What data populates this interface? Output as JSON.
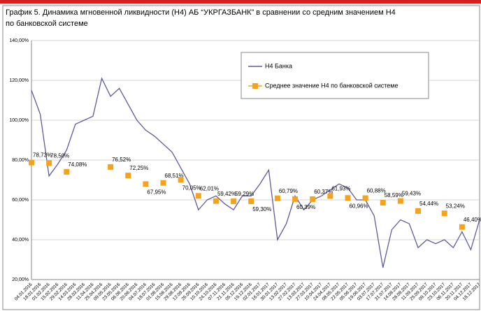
{
  "chart_data": {
    "type": "line",
    "title": "График 5. Динамика мгновенной ликвидности (Н4) АБ “УКРГАЗБАНК” в сравнении со средним значением Н4 по банковской системе",
    "categories": [
      "04.01.2016",
      "18.01.2016",
      "01.02.2016",
      "15.02.2016",
      "29.02.2016",
      "14.03.2016",
      "28.03.2016",
      "11.04.2016",
      "25.04.2016",
      "09.05.2016",
      "23.05.2016",
      "06.06.2016",
      "20.06.2016",
      "04.07.2016",
      "18.07.2016",
      "01.08.2016",
      "15.08.2016",
      "29.08.2016",
      "12.09.2016",
      "26.09.2016",
      "10.10.2016",
      "24.10.2016",
      "07.11.2016",
      "21.11.2016",
      "05.12.2016",
      "19.12.2016",
      "02.01.2017",
      "16.01.2017",
      "30.01.2017",
      "13.02.2017",
      "27.02.2017",
      "13.03.2017",
      "27.03.2017",
      "10.04.2017",
      "24.04.2017",
      "08.05.2017",
      "22.05.2017",
      "05.06.2017",
      "19.06.2017",
      "03.07.2017",
      "17.07.2017",
      "31.07.2017",
      "14.08.2017",
      "28.08.2017",
      "11.09.2017",
      "25.09.2017",
      "09.10.2017",
      "23.10.2017",
      "06.11.2017",
      "20.11.2017",
      "04.12.2017",
      "18.12.2017"
    ],
    "series": [
      {
        "name": "Н4 Банка",
        "color": "#5e5b9c",
        "values": [
          115,
          103,
          72,
          78,
          85,
          98,
          100,
          102,
          121,
          112,
          116,
          108,
          100,
          95,
          92,
          88,
          84,
          76,
          68,
          55,
          60,
          62,
          58,
          55,
          62,
          62,
          68,
          75,
          40,
          48,
          62,
          55,
          60,
          62,
          65,
          68,
          66,
          60,
          60,
          52,
          26,
          45,
          50,
          48,
          36,
          40,
          38,
          40,
          36,
          44,
          35,
          50
        ]
      },
      {
        "name": "Среднее значение Н4 по банковской системе",
        "color": "#f7a21b",
        "marker": "square",
        "values": [
          78.73,
          null,
          78.5,
          null,
          74.08,
          null,
          null,
          null,
          null,
          76.52,
          null,
          72.25,
          null,
          67.95,
          null,
          68.51,
          null,
          70.05,
          null,
          62.01,
          null,
          59.42,
          null,
          59.29,
          null,
          59.3,
          null,
          null,
          60.79,
          null,
          60.39,
          null,
          60.37,
          null,
          61.93,
          null,
          60.96,
          null,
          60.88,
          null,
          58.59,
          null,
          59.43,
          null,
          54.44,
          null,
          null,
          53.24,
          null,
          46.4,
          null,
          null
        ],
        "value_labels": [
          "78,73%",
          null,
          "78,50%",
          null,
          "74,08%",
          null,
          null,
          null,
          null,
          "76,52%",
          null,
          "72,25%",
          null,
          "67,95%",
          null,
          "68,51%",
          null,
          "70,05%",
          null,
          "62,01%",
          null,
          "59,42%",
          null,
          "59,29%",
          null,
          "59,30%",
          null,
          null,
          "60,79%",
          null,
          "60,39%",
          null,
          "60,37%",
          null,
          "61,93%",
          null,
          "60,96%",
          null,
          "60,88%",
          null,
          "58,59%",
          null,
          "59,43%",
          null,
          "54,44%",
          null,
          null,
          "53,24%",
          null,
          "46,40%",
          null,
          null
        ]
      }
    ],
    "ylim": [
      20,
      140
    ],
    "yticks": [
      {
        "value": 20,
        "label": "20,00%"
      },
      {
        "value": 40,
        "label": "40,00%"
      },
      {
        "value": 60,
        "label": "60,00%"
      },
      {
        "value": 80,
        "label": "80,00%"
      },
      {
        "value": 100,
        "label": "100,00%"
      },
      {
        "value": 120,
        "label": "120,00%"
      },
      {
        "value": 140,
        "label": "140,00%"
      }
    ],
    "grid": true,
    "legend": "upper right"
  }
}
